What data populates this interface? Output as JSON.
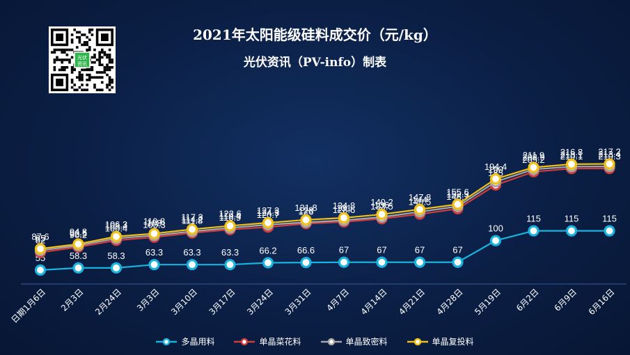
{
  "chart_data": {
    "type": "line",
    "title": "2021年太阳能级硅料成交价（元/kg）",
    "subtitle": "光伏资讯（PV-info）制表",
    "categories": [
      "日期1月6日",
      "2月3日",
      "2月24日",
      "3月3日",
      "3月10日",
      "3月17日",
      "3月24日",
      "3月31日",
      "4月7日",
      "4月14日",
      "4月21日",
      "4月28日",
      "5月19日",
      "6月2日",
      "6月9日",
      "6月16日"
    ],
    "series": [
      {
        "name": "多晶用料",
        "color": "#19b3de",
        "values": [
          55,
          58.3,
          58.3,
          63.3,
          63.3,
          63.3,
          66.2,
          66.6,
          67,
          67,
          67,
          67,
          100,
          115,
          115,
          115
        ]
      },
      {
        "name": "单晶菜花料",
        "color": "#d13d3d",
        "values": [
          82,
          90.2,
          100.4,
          105.3,
          111.8,
          116.9,
          120.7,
          126,
          128.6,
          133.5,
          140.5,
          148.7,
          185,
          205.2,
          210.1,
          210.3
        ]
      },
      {
        "name": "单晶致密料",
        "color": "#a6a6a6",
        "values": [
          85,
          92.5,
          103.4,
          108,
          114.2,
          119.4,
          124.3,
          128,
          131,
          136,
          144,
          152.3,
          190,
          208.9,
          213.1,
          213.4
        ]
      },
      {
        "name": "单晶复投料",
        "color": "#f2c018",
        "values": [
          87.6,
          94.8,
          106.3,
          110.8,
          117.3,
          122.6,
          127.3,
          131.8,
          134.8,
          140.2,
          147.8,
          155.6,
          194.4,
          211.9,
          216.8,
          217.2
        ]
      }
    ],
    "grid": false,
    "legend_position": "bottom",
    "qr_badge_text": "光伏资讯"
  }
}
